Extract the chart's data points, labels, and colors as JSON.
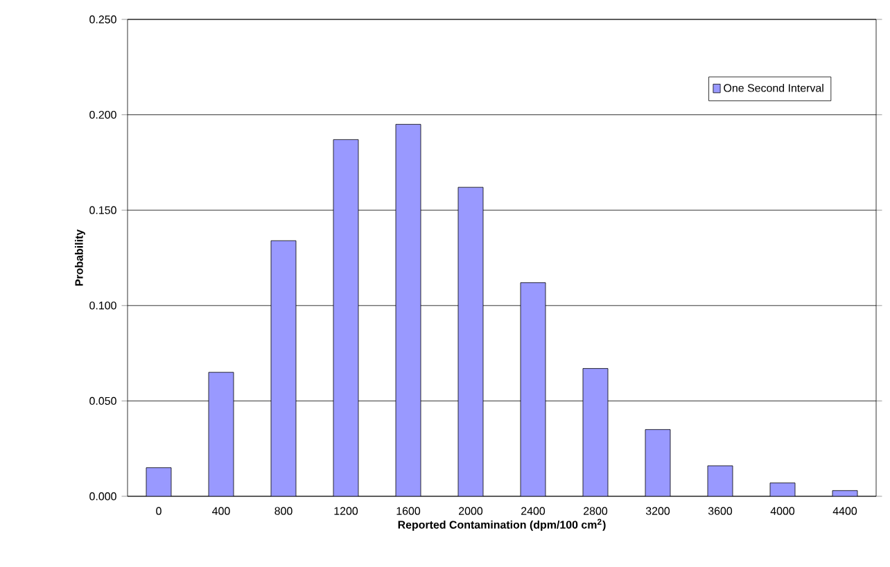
{
  "chart_data": {
    "type": "bar",
    "xlabel": "Reported Contamination (dpm/100 cm$^{2}$)",
    "ylabel": "Probability",
    "categories": [
      "0",
      "400",
      "800",
      "1200",
      "1600",
      "2000",
      "2400",
      "2800",
      "3200",
      "3600",
      "4000",
      "4400"
    ],
    "series": [
      {
        "name": "One Second Interval",
        "color": "#9999ff",
        "values": [
          0.015,
          0.065,
          0.134,
          0.187,
          0.195,
          0.162,
          0.112,
          0.067,
          0.035,
          0.016,
          0.007,
          0.003
        ]
      }
    ],
    "ylim": [
      0,
      0.25
    ],
    "yticks": [
      {
        "value": 0,
        "label": "0.000"
      },
      {
        "value": 0.05,
        "label": "0.050"
      },
      {
        "value": 0.1,
        "label": "0.100"
      },
      {
        "value": 0.15,
        "label": "0.150"
      },
      {
        "value": 0.2,
        "label": "0.200"
      },
      {
        "value": 0.25,
        "label": "0.250"
      }
    ],
    "grid": "y",
    "legend": "top right"
  }
}
